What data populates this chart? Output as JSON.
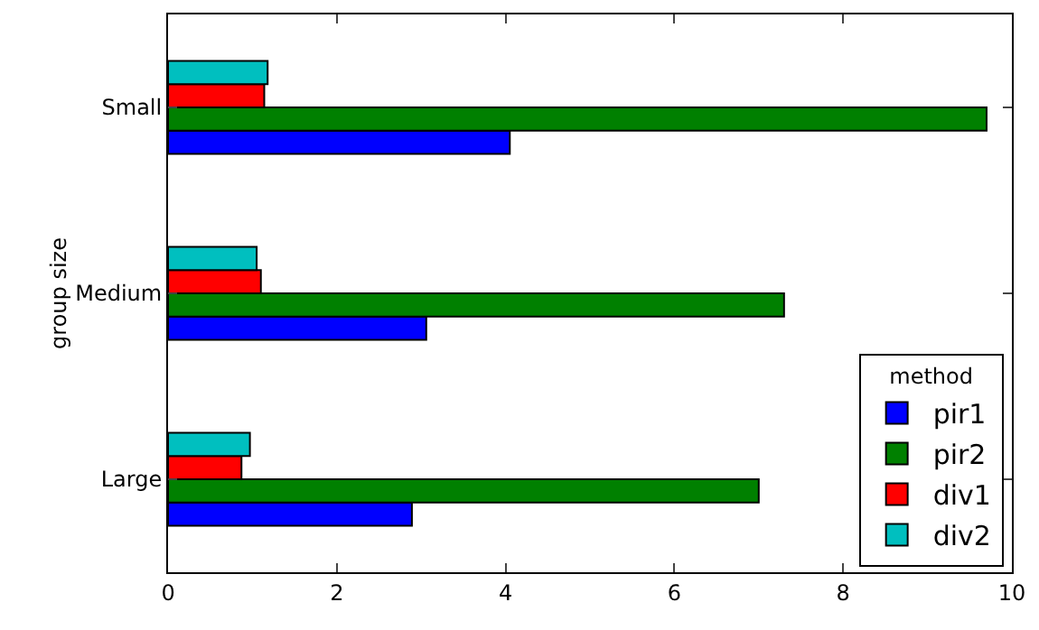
{
  "chart_data": {
    "type": "bar",
    "orientation": "horizontal",
    "ylabel": "group size",
    "legend_title": "method",
    "categories": [
      "Small",
      "Medium",
      "Large"
    ],
    "series": [
      {
        "name": "pir1",
        "color": "#0000ff",
        "values": [
          4.05,
          3.06,
          2.89
        ]
      },
      {
        "name": "pir2",
        "color": "#008000",
        "values": [
          9.7,
          7.3,
          7.0
        ]
      },
      {
        "name": "div1",
        "color": "#ff0000",
        "values": [
          1.14,
          1.1,
          0.87
        ]
      },
      {
        "name": "div2",
        "color": "#00bfbf",
        "values": [
          1.18,
          1.05,
          0.97
        ]
      }
    ],
    "xlim": [
      0,
      10
    ],
    "xticks": [
      0,
      2,
      4,
      6,
      8,
      10
    ],
    "grid": false,
    "legend": "bottom right"
  }
}
